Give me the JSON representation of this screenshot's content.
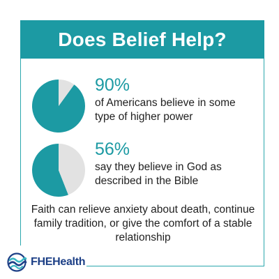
{
  "title": "Does Belief Help?",
  "colors": {
    "accent": "#1c9aa3",
    "pie_remainder": "#e2e2e2",
    "logo_navy": "#1c3f86",
    "logo_teal": "#3bb8c4"
  },
  "chart_data": [
    {
      "type": "pie",
      "categories": [
        "",
        ""
      ],
      "values": [
        90,
        10
      ],
      "label": "90%",
      "description": "of Americans believe in some type of higher power"
    },
    {
      "type": "pie",
      "categories": [
        "",
        ""
      ],
      "values": [
        56,
        44
      ],
      "label": "56%",
      "description": "say they believe in God as described in the Bible"
    }
  ],
  "footnote": "Faith can relieve anxiety about death, continue family tradition, or give the comfort of a stable relationship",
  "logo": {
    "icon": "waves-logo-icon",
    "text": "FHEHealth"
  }
}
